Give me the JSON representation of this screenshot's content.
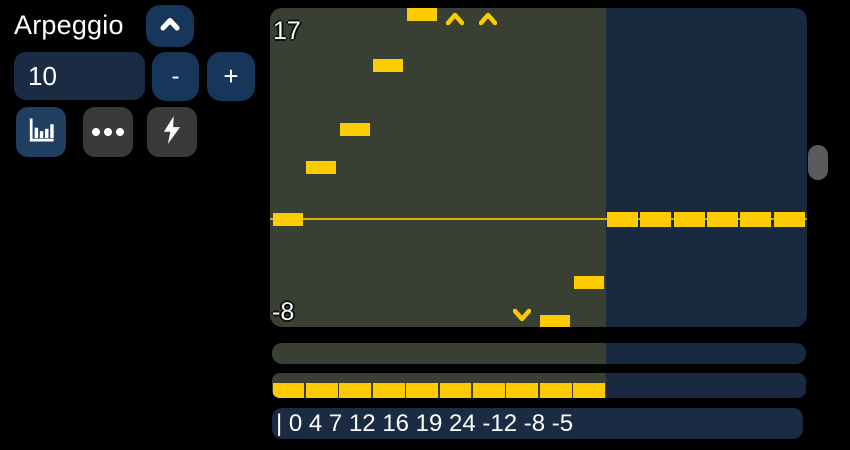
{
  "header": {
    "title": "Arpeggio"
  },
  "controls": {
    "steps_field": {
      "value": "10"
    },
    "collapse_button": {
      "icon": "chevron-up"
    },
    "decrement_button": {
      "label": "-"
    },
    "increment_button": {
      "label": "+"
    },
    "view_buttons": [
      {
        "id": "bar-chart",
        "active": true
      },
      {
        "id": "ellipsis",
        "active": false
      },
      {
        "id": "lightning",
        "active": false
      }
    ]
  },
  "chart_data": {
    "type": "bar",
    "title": "Arpeggio step sequence",
    "values": [
      0,
      4,
      7,
      12,
      16,
      19,
      24,
      -12,
      -8,
      -5
    ],
    "active_steps": 10,
    "total_slots": 16,
    "tail_values": [
      0,
      0,
      0,
      0,
      0,
      0
    ],
    "y_max_label": "17",
    "y_min_label": "-8",
    "ylim": [
      -8.5,
      16.5
    ],
    "zero_value": 0,
    "lower_lane_segments": 10,
    "legend": "values above/below visible range shown as chevrons"
  },
  "readout": {
    "text": "| 0 4 7 12 16 19 24 -12 -8 -5"
  },
  "colors": {
    "navy": "#182940",
    "panel": "#1b2b44",
    "btn_blue": "#17375a",
    "btn_blue_bright": "#1f3e62",
    "btn_gray": "#3a3a3a",
    "olive": "#394033",
    "yellow": "#fdcc00",
    "scroll": "#5a5a5a",
    "text": "#ffffff"
  }
}
